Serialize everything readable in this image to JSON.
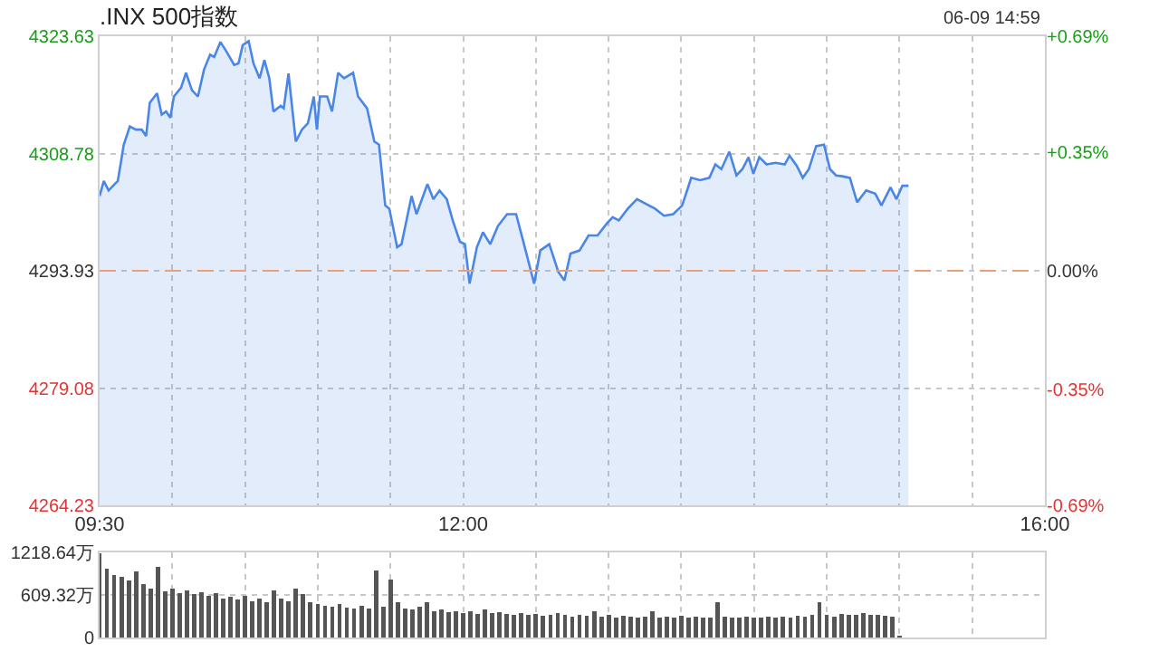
{
  "chart_data": [
    {
      "type": "area",
      "title": ".INX 500指数",
      "annotations": [
        "06-09 14:59"
      ],
      "x": [
        9.5,
        9.529,
        9.562,
        9.603,
        9.625,
        9.646,
        9.666,
        9.708,
        9.749,
        9.79,
        9.82,
        9.845,
        9.895,
        9.927,
        9.957,
        9.986,
        10.011,
        10.06,
        10.094,
        10.135,
        10.176,
        10.218,
        10.26,
        10.288,
        10.331,
        10.372,
        10.425,
        10.455,
        10.484,
        10.525,
        10.558,
        10.6,
        10.633,
        10.667,
        10.695,
        10.745,
        10.766,
        10.799,
        10.849,
        10.891,
        10.932,
        10.973,
        10.994,
        11.015,
        11.065,
        11.098,
        11.14,
        11.181,
        11.243,
        11.277,
        11.339,
        11.389,
        11.421,
        11.464,
        11.492,
        11.546,
        11.576,
        11.645,
        11.679,
        11.754,
        11.795,
        11.837,
        11.887,
        11.928,
        11.978,
        12.012,
        12.044,
        12.094,
        12.136,
        12.186,
        12.239,
        12.302,
        12.364,
        12.418,
        12.488,
        12.53,
        12.592,
        12.654,
        12.696,
        12.738,
        12.8,
        12.862,
        12.924,
        12.987,
        13.028,
        13.07,
        13.132,
        13.195,
        13.277,
        13.319,
        13.381,
        13.444,
        13.506,
        13.568,
        13.63,
        13.693,
        13.734,
        13.775,
        13.83,
        13.879,
        13.92,
        13.962,
        13.995,
        14.036,
        14.086,
        14.148,
        14.211,
        14.244,
        14.294,
        14.335,
        14.377,
        14.427,
        14.481,
        14.522,
        14.564,
        14.605,
        14.659,
        14.709,
        14.771,
        14.833,
        14.876,
        14.938,
        14.979,
        15.02,
        15.062
      ],
      "series": [
        {
          "color": "#4a86e8",
          "values": [
            4303.4,
            4305.3,
            4304.1,
            4304.9,
            4305.3,
            4307.6,
            4309.9,
            4312.2,
            4311.8,
            4311.8,
            4311.0,
            4315.2,
            4316.4,
            4313.7,
            4314.1,
            4313.3,
            4316.0,
            4317.1,
            4319.0,
            4316.8,
            4316.0,
            4319.4,
            4321.3,
            4321.0,
            4322.9,
            4321.7,
            4320.0,
            4320.2,
            4322.5,
            4323.0,
            4320.2,
            4318.3,
            4320.6,
            4318.3,
            4314.1,
            4314.8,
            4314.5,
            4318.9,
            4310.3,
            4311.8,
            4312.6,
            4316.0,
            4311.8,
            4316.0,
            4316.0,
            4314.1,
            4319.0,
            4318.3,
            4319.0,
            4316.0,
            4314.5,
            4310.3,
            4309.9,
            4302.2,
            4301.8,
            4296.9,
            4297.3,
            4303.4,
            4301.1,
            4304.9,
            4303.0,
            4304.1,
            4303.0,
            4300.3,
            4297.6,
            4297.3,
            4292.3,
            4296.9,
            4298.8,
            4297.3,
            4299.6,
            4301.1,
            4301.1,
            4297.3,
            4292.3,
            4296.5,
            4297.3,
            4293.8,
            4292.7,
            4296.1,
            4296.5,
            4298.4,
            4298.4,
            4299.9,
            4300.7,
            4300.3,
            4301.8,
            4303.0,
            4302.2,
            4301.8,
            4300.9,
            4301.1,
            4302.2,
            4305.7,
            4305.4,
            4305.7,
            4307.4,
            4306.8,
            4309.0,
            4306.0,
            4306.8,
            4308.3,
            4306.2,
            4308.3,
            4307.4,
            4307.6,
            4307.4,
            4308.5,
            4307.2,
            4305.7,
            4306.8,
            4309.7,
            4309.9,
            4306.8,
            4306.0,
            4305.9,
            4305.7,
            4302.6,
            4304.1,
            4303.7,
            4302.2,
            4304.5,
            4303.0,
            4304.7,
            4304.7
          ]
        }
      ],
      "xlim": [
        9.5,
        16
      ],
      "xticks": [
        {
          "value": 9.5,
          "label": "09:30"
        },
        {
          "value": 10,
          "label": null
        },
        {
          "value": 10.5,
          "label": null
        },
        {
          "value": 11,
          "label": null
        },
        {
          "value": 11.5,
          "label": null
        },
        {
          "value": 12,
          "label": "12:00"
        },
        {
          "value": 12.5,
          "label": null
        },
        {
          "value": 13,
          "label": null
        },
        {
          "value": 13.5,
          "label": null
        },
        {
          "value": 14,
          "label": null
        },
        {
          "value": 14.5,
          "label": null
        },
        {
          "value": 15,
          "label": null
        },
        {
          "value": 15.5,
          "label": null
        },
        {
          "value": 16,
          "label": "16:00"
        }
      ],
      "ylim": [
        4264.23,
        4323.63
      ],
      "yticks": [
        4264.23,
        4279.08,
        4293.93,
        4308.78,
        4323.63
      ],
      "y2lim": [
        -0.69,
        0.69
      ],
      "y2ticks": [
        {
          "value": -0.69,
          "label": "-0.69%"
        },
        {
          "value": -0.35,
          "label": "-0.35%"
        },
        {
          "value": 0,
          "label": "0.00%"
        },
        {
          "value": 0.35,
          "label": "+0.35%"
        },
        {
          "value": 0.69,
          "label": "+0.69%"
        }
      ],
      "ref_lines": [
        {
          "axis": "y",
          "value": 4293.93,
          "color": "#e8a07a",
          "line_style": "dashed"
        }
      ],
      "grid": true
    },
    {
      "type": "bar",
      "color": "#555555",
      "x": [
        9.5,
        9.55,
        9.6,
        9.65,
        9.7,
        9.75,
        9.8,
        9.85,
        9.9,
        9.95,
        10,
        10.05,
        10.1,
        10.15,
        10.2,
        10.25,
        10.3,
        10.35,
        10.4,
        10.45,
        10.5,
        10.55,
        10.6,
        10.65,
        10.7,
        10.75,
        10.8,
        10.85,
        10.9,
        10.95,
        11,
        11.05,
        11.1,
        11.15,
        11.2,
        11.25,
        11.3,
        11.35,
        11.4,
        11.45,
        11.5,
        11.55,
        11.6,
        11.65,
        11.7,
        11.75,
        11.8,
        11.85,
        11.9,
        11.95,
        12,
        12.05,
        12.1,
        12.15,
        12.2,
        12.25,
        12.3,
        12.35,
        12.4,
        12.45,
        12.5,
        12.55,
        12.6,
        12.65,
        12.7,
        12.75,
        12.8,
        12.85,
        12.9,
        12.95,
        13,
        13.05,
        13.1,
        13.15,
        13.2,
        13.25,
        13.3,
        13.35,
        13.4,
        13.45,
        13.5,
        13.55,
        13.6,
        13.65,
        13.7,
        13.75,
        13.8,
        13.85,
        13.9,
        13.95,
        14,
        14.05,
        14.1,
        14.15,
        14.2,
        14.25,
        14.3,
        14.35,
        14.4,
        14.45,
        14.5,
        14.55,
        14.6,
        14.65,
        14.7,
        14.75,
        14.8,
        14.85,
        14.9,
        14.95,
        15
      ],
      "values": [
        1210,
        980,
        900,
        870,
        820,
        950,
        760,
        700,
        1010,
        660,
        700,
        640,
        680,
        620,
        650,
        600,
        640,
        560,
        580,
        540,
        600,
        520,
        560,
        500,
        680,
        560,
        520,
        700,
        620,
        500,
        480,
        460,
        440,
        480,
        430,
        420,
        450,
        420,
        960,
        440,
        830,
        500,
        420,
        400,
        440,
        500,
        380,
        400,
        360,
        380,
        350,
        370,
        340,
        400,
        350,
        360,
        340,
        330,
        350,
        320,
        340,
        310,
        330,
        350,
        320,
        300,
        320,
        310,
        380,
        300,
        320,
        290,
        310,
        300,
        280,
        300,
        380,
        290,
        300,
        280,
        310,
        290,
        300,
        280,
        290,
        500,
        300,
        280,
        290,
        300,
        280,
        290,
        300,
        280,
        300,
        290,
        310,
        300,
        320,
        500,
        320,
        300,
        340,
        320,
        330,
        350,
        320,
        330,
        310,
        300,
        20
      ],
      "xlim": [
        9.5,
        16
      ],
      "xticks": [
        {
          "value": 9.5,
          "label": null
        },
        {
          "value": 10,
          "label": null
        },
        {
          "value": 10.5,
          "label": null
        },
        {
          "value": 11,
          "label": null
        },
        {
          "value": 11.5,
          "label": null
        },
        {
          "value": 12,
          "label": null
        },
        {
          "value": 12.5,
          "label": null
        },
        {
          "value": 13,
          "label": null
        },
        {
          "value": 13.5,
          "label": null
        },
        {
          "value": 14,
          "label": null
        },
        {
          "value": 14.5,
          "label": null
        },
        {
          "value": 15,
          "label": null
        },
        {
          "value": 15.5,
          "label": null
        },
        {
          "value": 16,
          "label": null
        }
      ],
      "ylim": [
        0,
        1218.64
      ],
      "yticks": [
        0,
        {
          "value": 609.32,
          "label": "609.32万"
        },
        {
          "value": 1218.64,
          "label": "1218.64万"
        }
      ],
      "tick_labels": "y",
      "grid": true
    }
  ]
}
